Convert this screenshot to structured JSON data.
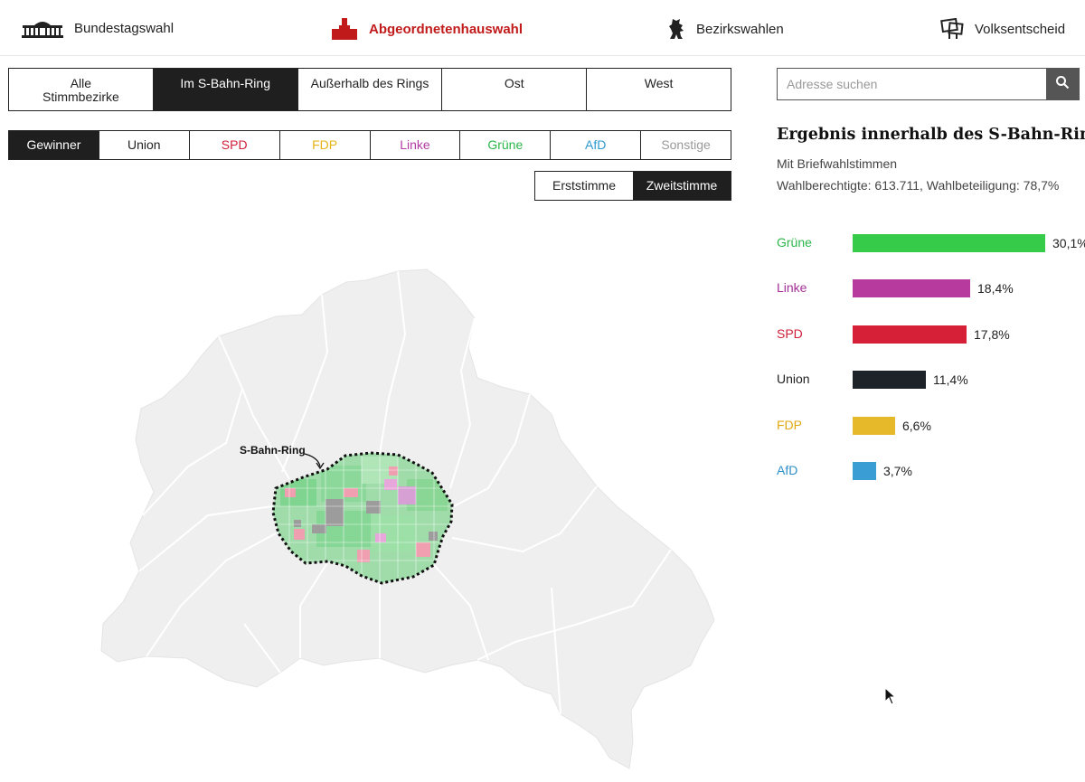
{
  "nav": {
    "items": [
      {
        "label": "Bundestagswahl",
        "icon": "reichstag-icon"
      },
      {
        "label": "Abgeordnetenhauswahl",
        "icon": "tower-icon",
        "active": true
      },
      {
        "label": "Bezirkswahlen",
        "icon": "bear-icon"
      },
      {
        "label": "Volksentscheid",
        "icon": "protest-sign-icon"
      }
    ]
  },
  "region_tabs": [
    {
      "label": "Alle\nStimmbezirke"
    },
    {
      "label": "Im S-Bahn-Ring",
      "active": true
    },
    {
      "label": "Außerhalb des Rings"
    },
    {
      "label": "Ost"
    },
    {
      "label": "West"
    }
  ],
  "party_tabs": [
    {
      "label": "Gewinner",
      "color": "#ffffff",
      "active": true
    },
    {
      "label": "Union",
      "color": "#222222"
    },
    {
      "label": "SPD",
      "color": "#d0203a"
    },
    {
      "label": "FDP",
      "color": "#e6b319"
    },
    {
      "label": "Linke",
      "color": "#b43aa3"
    },
    {
      "label": "Grüne",
      "color": "#2cb64a"
    },
    {
      "label": "AfD",
      "color": "#2e9ad0"
    },
    {
      "label": "Sonstige",
      "color": "#999999"
    }
  ],
  "vote_toggle": [
    {
      "label": "Erststimme"
    },
    {
      "label": "Zweitstimme",
      "active": true
    }
  ],
  "map": {
    "ring_label": "S-Bahn-Ring"
  },
  "search": {
    "placeholder": "Adresse suchen",
    "icon": "search-icon"
  },
  "results": {
    "title": "Ergebnis innerhalb des S-Bahn-Rings",
    "subtitle": "Mit Briefwahlstimmen",
    "stats": "Wahlberechtigte: 613.711, Wahlbeteiligung: 78,7%"
  },
  "chart_data": {
    "type": "bar",
    "orientation": "horizontal",
    "categories": [
      "Grüne",
      "Linke",
      "SPD",
      "Union",
      "FDP",
      "AfD"
    ],
    "values": [
      30.1,
      18.4,
      17.8,
      11.4,
      6.6,
      3.7
    ],
    "value_labels": [
      "30,1%",
      "18,4%",
      "17,8%",
      "11,4%",
      "6,6%",
      "3,7%"
    ],
    "colors": [
      "#36cc4a",
      "#b73b9e",
      "#d62038",
      "#1e2229",
      "#e6b92a",
      "#3a9dd4"
    ],
    "label_colors": [
      "#2cb64a",
      "#a42f97",
      "#d0203a",
      "#222222",
      "#e0a80f",
      "#2e8fc9"
    ],
    "xlim": [
      0,
      30.1
    ]
  }
}
